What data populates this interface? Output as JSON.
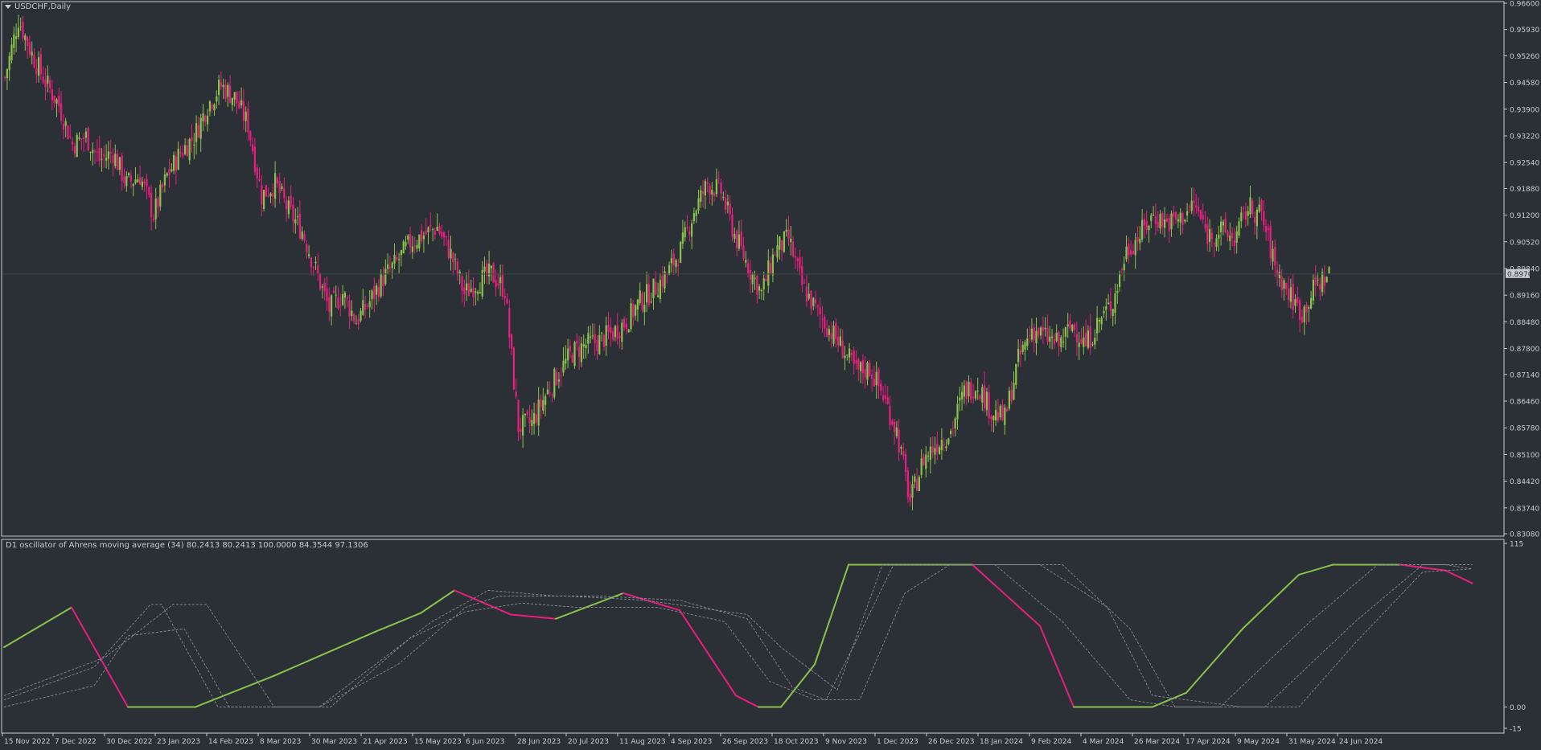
{
  "chart_window": {
    "symbol_label": "USDCHF,Daily",
    "current_price": "0.89700",
    "colors": {
      "background": "#2b2f36",
      "bull": "#8bc34a",
      "bear": "#e91e7f",
      "text": "#c9ccd1",
      "grid": "#3a3f46"
    }
  },
  "chart_data": [
    {
      "type": "candlestick",
      "title": "USDCHF,Daily",
      "yaxis_ticks": [
        "0.96600",
        "0.95930",
        "0.95260",
        "0.94580",
        "0.93900",
        "0.93220",
        "0.92540",
        "0.91880",
        "0.91200",
        "0.90520",
        "0.89840",
        "0.89160",
        "0.88480",
        "0.87800",
        "0.87140",
        "0.86460",
        "0.85780",
        "0.85100",
        "0.84420",
        "0.83740",
        "0.83080"
      ],
      "ylim": [
        0.8308,
        0.966
      ],
      "current_price": 0.897,
      "xaxis_ticks": [
        "15 Nov 2022",
        "7 Dec 2022",
        "30 Dec 2022",
        "23 Jan 2023",
        "14 Feb 2023",
        "8 Mar 2023",
        "30 Mar 2023",
        "21 Apr 2023",
        "15 May 2023",
        "6 Jun 2023",
        "28 Jun 2023",
        "20 Jul 2023",
        "11 Aug 2023",
        "4 Sep 2023",
        "26 Sep 2023",
        "18 Oct 2023",
        "9 Nov 2023",
        "1 Dec 2023",
        "26 Dec 2023",
        "18 Jan 2024",
        "9 Feb 2024",
        "4 Mar 2024",
        "26 Mar 2024",
        "17 Apr 2024",
        "9 May 2024",
        "31 May 2024",
        "24 Jun 2024"
      ],
      "close_path": [
        [
          0,
          0.947
        ],
        [
          6,
          0.962
        ],
        [
          12,
          0.953
        ],
        [
          18,
          0.946
        ],
        [
          24,
          0.94
        ],
        [
          30,
          0.93
        ],
        [
          36,
          0.932
        ],
        [
          42,
          0.926
        ],
        [
          48,
          0.928
        ],
        [
          54,
          0.92
        ],
        [
          60,
          0.922
        ],
        [
          66,
          0.912
        ],
        [
          72,
          0.922
        ],
        [
          78,
          0.928
        ],
        [
          84,
          0.932
        ],
        [
          90,
          0.94
        ],
        [
          96,
          0.945
        ],
        [
          102,
          0.942
        ],
        [
          108,
          0.935
        ],
        [
          114,
          0.917
        ],
        [
          120,
          0.92
        ],
        [
          126,
          0.913
        ],
        [
          132,
          0.908
        ],
        [
          138,
          0.898
        ],
        [
          144,
          0.888
        ],
        [
          150,
          0.892
        ],
        [
          156,
          0.885
        ],
        [
          162,
          0.89
        ],
        [
          168,
          0.896
        ],
        [
          174,
          0.9
        ],
        [
          180,
          0.905
        ],
        [
          186,
          0.907
        ],
        [
          192,
          0.909
        ],
        [
          198,
          0.902
        ],
        [
          204,
          0.892
        ],
        [
          210,
          0.895
        ],
        [
          216,
          0.897
        ],
        [
          222,
          0.893
        ],
        [
          228,
          0.858
        ],
        [
          234,
          0.859
        ],
        [
          240,
          0.866
        ],
        [
          246,
          0.872
        ],
        [
          252,
          0.877
        ],
        [
          258,
          0.879
        ],
        [
          264,
          0.88
        ],
        [
          270,
          0.882
        ],
        [
          276,
          0.885
        ],
        [
          282,
          0.89
        ],
        [
          288,
          0.893
        ],
        [
          294,
          0.897
        ],
        [
          300,
          0.903
        ],
        [
          306,
          0.913
        ],
        [
          312,
          0.92
        ],
        [
          318,
          0.918
        ],
        [
          324,
          0.907
        ],
        [
          330,
          0.899
        ],
        [
          336,
          0.892
        ],
        [
          342,
          0.903
        ],
        [
          348,
          0.906
        ],
        [
          354,
          0.894
        ],
        [
          360,
          0.888
        ],
        [
          366,
          0.883
        ],
        [
          372,
          0.878
        ],
        [
          378,
          0.872
        ],
        [
          384,
          0.873
        ],
        [
          390,
          0.866
        ],
        [
          396,
          0.857
        ],
        [
          402,
          0.839
        ],
        [
          408,
          0.85
        ],
        [
          414,
          0.854
        ],
        [
          420,
          0.857
        ],
        [
          426,
          0.867
        ],
        [
          432,
          0.869
        ],
        [
          438,
          0.862
        ],
        [
          444,
          0.86
        ],
        [
          450,
          0.875
        ],
        [
          456,
          0.883
        ],
        [
          462,
          0.881
        ],
        [
          468,
          0.879
        ],
        [
          474,
          0.884
        ],
        [
          480,
          0.879
        ],
        [
          486,
          0.885
        ],
        [
          492,
          0.89
        ],
        [
          498,
          0.903
        ],
        [
          504,
          0.907
        ],
        [
          510,
          0.912
        ],
        [
          516,
          0.91
        ],
        [
          522,
          0.911
        ],
        [
          528,
          0.915
        ],
        [
          534,
          0.907
        ],
        [
          540,
          0.908
        ],
        [
          546,
          0.906
        ],
        [
          552,
          0.914
        ],
        [
          558,
          0.912
        ],
        [
          564,
          0.899
        ],
        [
          570,
          0.892
        ],
        [
          576,
          0.887
        ],
        [
          582,
          0.894
        ],
        [
          588,
          0.897
        ]
      ]
    },
    {
      "type": "line",
      "title": "D1 oscillator of Ahrens moving average (34) 80.2413 80.2413 100.0000 84.3544 97.1306",
      "yaxis_ticks": [
        "115",
        "0.00",
        "-15"
      ],
      "ylim": [
        -15,
        115
      ],
      "series": [
        {
          "values": [
            [
              0,
              42
            ],
            [
              30,
              70
            ],
            [
              55,
              0
            ],
            [
              85,
              0
            ],
            [
              120,
              22
            ],
            [
              165,
              53
            ],
            [
              185,
              66
            ],
            [
              200,
              82
            ],
            [
              225,
              65
            ],
            [
              245,
              62
            ],
            [
              275,
              80
            ],
            [
              300,
              68
            ],
            [
              325,
              8
            ],
            [
              335,
              0
            ],
            [
              345,
              0
            ],
            [
              360,
              30
            ],
            [
              375,
              100
            ],
            [
              410,
              100
            ],
            [
              430,
              100
            ],
            [
              460,
              57
            ],
            [
              475,
              0
            ],
            [
              500,
              0
            ],
            [
              510,
              0
            ],
            [
              525,
              10
            ],
            [
              550,
              55
            ],
            [
              575,
              93
            ],
            [
              590,
              100
            ],
            [
              620,
              100
            ],
            [
              640,
              96
            ],
            [
              652,
              87
            ]
          ]
        },
        {
          "values": [
            [
              0,
              5
            ],
            [
              40,
              28
            ],
            [
              65,
              72
            ],
            [
              70,
              72
            ],
            [
              95,
              0
            ],
            [
              140,
              0
            ],
            [
              175,
              30
            ],
            [
              205,
              70
            ],
            [
              220,
              78
            ],
            [
              250,
              78
            ],
            [
              285,
              75
            ],
            [
              330,
              65
            ],
            [
              345,
              42
            ],
            [
              370,
              12
            ],
            [
              390,
              100
            ],
            [
              420,
              100
            ],
            [
              440,
              100
            ],
            [
              470,
              60
            ],
            [
              500,
              5
            ],
            [
              520,
              0
            ],
            [
              540,
              0
            ],
            [
              580,
              60
            ],
            [
              610,
              100
            ],
            [
              640,
              100
            ],
            [
              652,
              97
            ]
          ]
        },
        {
          "values": [
            [
              0,
              0
            ],
            [
              40,
              15
            ],
            [
              55,
              50
            ],
            [
              80,
              55
            ],
            [
              100,
              0
            ],
            [
              140,
              0
            ],
            [
              190,
              60
            ],
            [
              215,
              82
            ],
            [
              245,
              78
            ],
            [
              265,
              78
            ],
            [
              300,
              75
            ],
            [
              330,
              62
            ],
            [
              350,
              14
            ],
            [
              365,
              5
            ],
            [
              378,
              45
            ],
            [
              395,
              100
            ],
            [
              440,
              100
            ],
            [
              470,
              100
            ],
            [
              500,
              55
            ],
            [
              520,
              0
            ],
            [
              560,
              0
            ],
            [
              600,
              60
            ],
            [
              630,
              100
            ],
            [
              652,
              100
            ]
          ]
        },
        {
          "values": [
            [
              0,
              8
            ],
            [
              45,
              35
            ],
            [
              75,
              72
            ],
            [
              90,
              72
            ],
            [
              120,
              0
            ],
            [
              145,
              0
            ],
            [
              180,
              48
            ],
            [
              205,
              67
            ],
            [
              230,
              73
            ],
            [
              255,
              70
            ],
            [
              290,
              70
            ],
            [
              320,
              60
            ],
            [
              340,
              18
            ],
            [
              360,
              5
            ],
            [
              380,
              5
            ],
            [
              400,
              80
            ],
            [
              420,
              100
            ],
            [
              460,
              100
            ],
            [
              490,
              70
            ],
            [
              510,
              8
            ],
            [
              550,
              0
            ],
            [
              575,
              0
            ],
            [
              600,
              45
            ],
            [
              630,
              95
            ],
            [
              652,
              97
            ]
          ]
        }
      ]
    }
  ]
}
